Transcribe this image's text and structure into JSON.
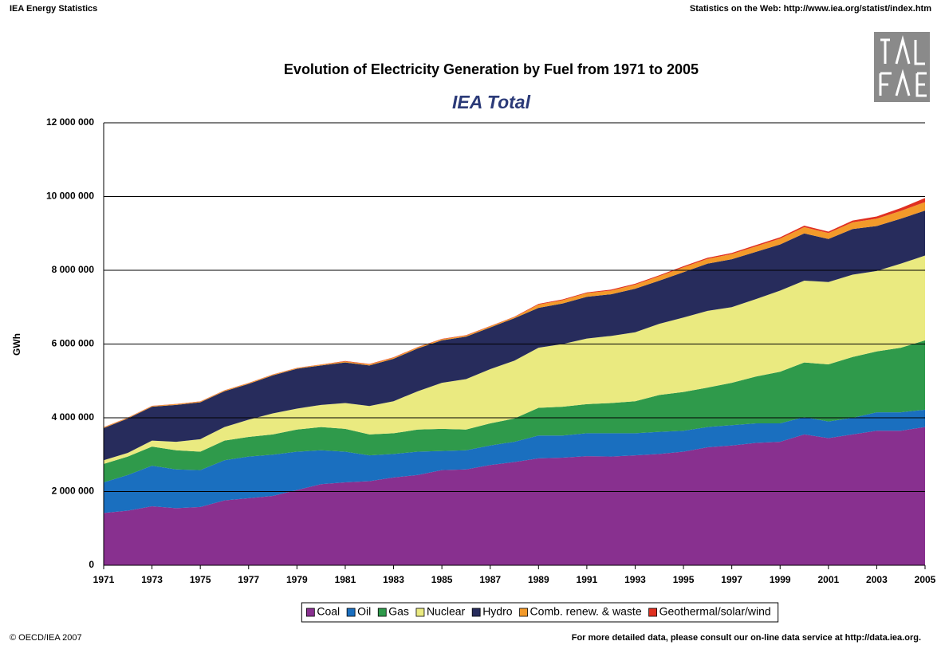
{
  "header_left": "IEA Energy Statistics",
  "header_right": "Statistics on the Web: http://www.iea.org/statist/index.htm",
  "footer_left": "© OECD/IEA 2007",
  "footer_right": "For more detailed data, please consult our on-line data service at http://data.iea.org.",
  "chart_data": {
    "type": "stacked-area",
    "title": "Evolution of Electricity Generation by Fuel from 1971 to 2005",
    "subtitle": "IEA Total",
    "y_label": "GWh",
    "x": [
      1971,
      1972,
      1973,
      1974,
      1975,
      1976,
      1977,
      1978,
      1979,
      1980,
      1981,
      1982,
      1983,
      1984,
      1985,
      1986,
      1987,
      1988,
      1989,
      1990,
      1991,
      1992,
      1993,
      1994,
      1995,
      1996,
      1997,
      1998,
      1999,
      2000,
      2001,
      2002,
      2003,
      2004,
      2005
    ],
    "xlim": [
      1971,
      2005
    ],
    "xticks": [
      1971,
      1973,
      1975,
      1977,
      1979,
      1981,
      1983,
      1985,
      1987,
      1989,
      1991,
      1993,
      1995,
      1997,
      1999,
      2001,
      2003,
      2005
    ],
    "ylim": [
      0,
      12000000
    ],
    "yticks": [
      {
        "value": 0,
        "label": "0"
      },
      {
        "value": 2000000,
        "label": "2 000 000"
      },
      {
        "value": 4000000,
        "label": "4 000 000"
      },
      {
        "value": 6000000,
        "label": "6 000 000"
      },
      {
        "value": 8000000,
        "label": "8 000 000"
      },
      {
        "value": 10000000,
        "label": "10 000 000"
      },
      {
        "value": 12000000,
        "label": "12 000 000"
      }
    ],
    "grid": true,
    "legend": "bottom",
    "series": [
      {
        "name": "Coal",
        "color": "#88308f",
        "values": [
          1420000,
          1480000,
          1600000,
          1550000,
          1580000,
          1760000,
          1820000,
          1880000,
          2040000,
          2200000,
          2250000,
          2280000,
          2380000,
          2450000,
          2580000,
          2600000,
          2720000,
          2800000,
          2900000,
          2920000,
          2960000,
          2950000,
          2980000,
          3020000,
          3080000,
          3200000,
          3250000,
          3320000,
          3350000,
          3550000,
          3450000,
          3550000,
          3650000,
          3650000,
          3750000
        ]
      },
      {
        "name": "Oil",
        "color": "#1a6fbf",
        "values": [
          830000,
          970000,
          1100000,
          1050000,
          1000000,
          1090000,
          1130000,
          1120000,
          1040000,
          920000,
          830000,
          700000,
          640000,
          630000,
          520000,
          520000,
          530000,
          550000,
          620000,
          600000,
          620000,
          630000,
          600000,
          600000,
          570000,
          550000,
          550000,
          530000,
          500000,
          470000,
          450000,
          450000,
          500000,
          500000,
          470000
        ]
      },
      {
        "name": "Gas",
        "color": "#2f9a4b",
        "values": [
          500000,
          500000,
          520000,
          520000,
          500000,
          530000,
          530000,
          550000,
          600000,
          630000,
          620000,
          570000,
          560000,
          600000,
          600000,
          560000,
          600000,
          630000,
          750000,
          780000,
          790000,
          820000,
          870000,
          1000000,
          1050000,
          1070000,
          1150000,
          1270000,
          1400000,
          1480000,
          1550000,
          1650000,
          1650000,
          1750000,
          1880000
        ]
      },
      {
        "name": "Nuclear",
        "color": "#eaea80",
        "values": [
          100000,
          100000,
          160000,
          230000,
          340000,
          370000,
          470000,
          570000,
          570000,
          600000,
          700000,
          770000,
          870000,
          1040000,
          1250000,
          1370000,
          1470000,
          1570000,
          1630000,
          1700000,
          1780000,
          1820000,
          1870000,
          1930000,
          2020000,
          2080000,
          2050000,
          2100000,
          2200000,
          2220000,
          2230000,
          2230000,
          2180000,
          2280000,
          2300000
        ]
      },
      {
        "name": "Hydro",
        "color": "#272c5c",
        "values": [
          870000,
          930000,
          920000,
          1000000,
          1000000,
          970000,
          970000,
          1030000,
          1080000,
          1070000,
          1100000,
          1100000,
          1150000,
          1160000,
          1150000,
          1150000,
          1130000,
          1150000,
          1080000,
          1100000,
          1130000,
          1130000,
          1180000,
          1170000,
          1230000,
          1280000,
          1300000,
          1280000,
          1250000,
          1280000,
          1170000,
          1240000,
          1220000,
          1220000,
          1220000
        ]
      },
      {
        "name": "Comb. renew. & waste",
        "color": "#f39a2a",
        "values": [
          20000,
          20000,
          20000,
          20000,
          20000,
          20000,
          20000,
          20000,
          20000,
          20000,
          30000,
          30000,
          30000,
          30000,
          30000,
          30000,
          30000,
          30000,
          90000,
          90000,
          100000,
          100000,
          110000,
          120000,
          130000,
          130000,
          140000,
          150000,
          160000,
          170000,
          160000,
          180000,
          200000,
          210000,
          230000
        ]
      },
      {
        "name": "Geothermal/solar/wind",
        "color": "#e03020",
        "values": [
          5000,
          5000,
          5000,
          5000,
          5000,
          5000,
          5000,
          5000,
          5000,
          5000,
          10000,
          10000,
          10000,
          10000,
          10000,
          10000,
          10000,
          10000,
          20000,
          20000,
          20000,
          25000,
          25000,
          25000,
          30000,
          30000,
          30000,
          35000,
          35000,
          40000,
          40000,
          50000,
          60000,
          80000,
          110000
        ]
      }
    ]
  }
}
